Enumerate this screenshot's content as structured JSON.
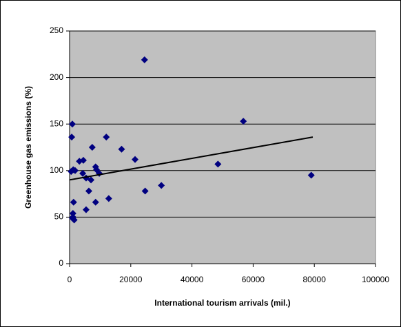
{
  "chart_data": {
    "type": "scatter",
    "x_label": "International tourism arrivals (mil.)",
    "y_label": "Greenhouse gas emissions (%)",
    "color": "#000080",
    "plot_background": "#c0c0c0",
    "grid": true,
    "xlim": [
      0,
      100000
    ],
    "xticks": [
      0,
      20000,
      40000,
      60000,
      80000,
      100000
    ],
    "ylim": [
      0,
      250
    ],
    "yticks": [
      0,
      50,
      100,
      150,
      200,
      250
    ],
    "x": [
      24500,
      56800,
      900,
      700,
      12000,
      17000,
      7400,
      21400,
      3200,
      4500,
      48500,
      8500,
      1200,
      500,
      1800,
      4300,
      5400,
      7000,
      9700,
      8800,
      79000,
      30000,
      24700,
      6300,
      12800,
      8500,
      1300,
      5400,
      1100,
      1100,
      1500,
      900
    ],
    "values": [
      219,
      153,
      150,
      136,
      136,
      123,
      125,
      112,
      110,
      111,
      107,
      104,
      101,
      99,
      100,
      97,
      92,
      90,
      97,
      101,
      95,
      84,
      78,
      78,
      70,
      66,
      66,
      58,
      54,
      50,
      47,
      49
    ],
    "trendline": {
      "x": [
        0,
        79500
      ],
      "values": [
        90,
        136
      ],
      "color": "#000000"
    }
  }
}
